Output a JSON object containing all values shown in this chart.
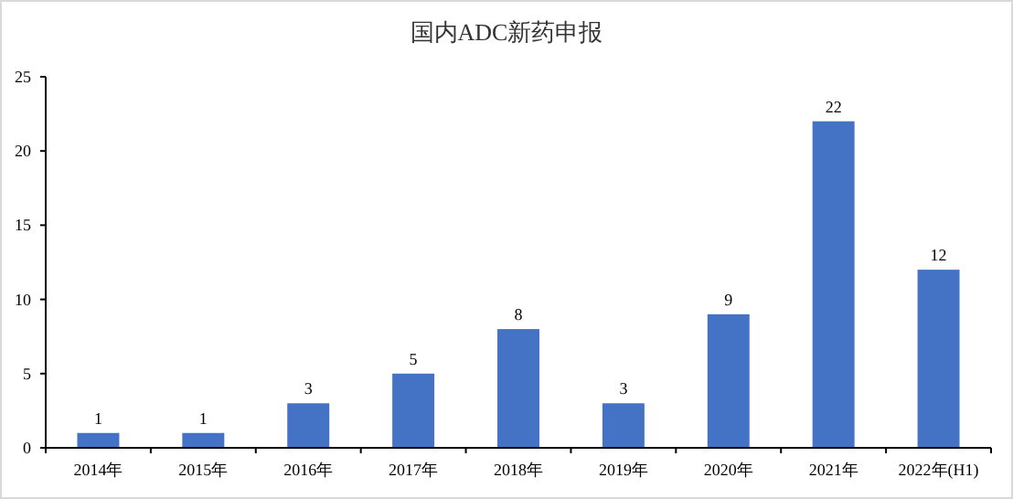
{
  "chart_data": {
    "type": "bar",
    "title": "国内ADC新药申报",
    "categories": [
      "2014年",
      "2015年",
      "2016年",
      "2017年",
      "2018年",
      "2019年",
      "2020年",
      "2021年",
      "2022年(H1)"
    ],
    "values": [
      1,
      1,
      3,
      5,
      8,
      3,
      9,
      22,
      12
    ],
    "color": "#4472c4",
    "ylim": [
      0,
      25
    ],
    "yticks": [
      0,
      5,
      10,
      15,
      20,
      25
    ],
    "data_labels": true,
    "grid": false
  }
}
